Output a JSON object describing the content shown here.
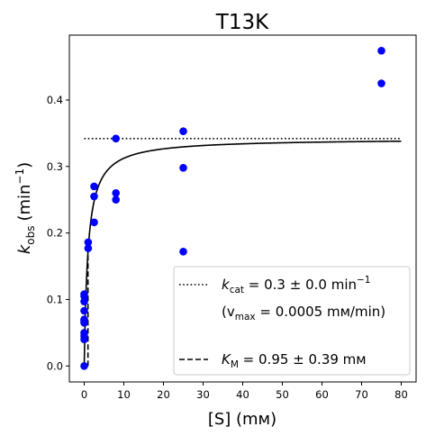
{
  "chart_data": {
    "type": "scatter",
    "title": "T13K",
    "xlabel": "[S] (mм)",
    "ylabel_main": "k",
    "ylabel_sub": "obs",
    "ylabel_unit": "(min",
    "ylabel_exp": "−1",
    "ylabel_close": ")",
    "xlim": [
      -3.75,
      83.75
    ],
    "ylim": [
      -0.024,
      0.4975
    ],
    "xticks": [
      0,
      10,
      20,
      30,
      40,
      50,
      60,
      70,
      80
    ],
    "yticks": [
      0.0,
      0.1,
      0.2,
      0.3,
      0.4
    ],
    "ytick_labels": [
      "0.0",
      "0.1",
      "0.2",
      "0.3",
      "0.4"
    ],
    "grid": false,
    "legend_position": "lower-right",
    "points": {
      "color": "#0000ff",
      "x": [
        0,
        0,
        0,
        0,
        0,
        0,
        0,
        0,
        0,
        0,
        0,
        1,
        1,
        2.5,
        2.5,
        2.5,
        8,
        8,
        8,
        25,
        25,
        25,
        75,
        75
      ],
      "y": [
        0.0,
        0.04,
        0.045,
        0.05,
        0.065,
        0.068,
        0.07,
        0.083,
        0.097,
        0.105,
        0.108,
        0.177,
        0.186,
        0.216,
        0.255,
        0.27,
        0.25,
        0.26,
        0.342,
        0.172,
        0.298,
        0.353,
        0.425,
        0.474
      ]
    },
    "fit": {
      "kcat": 0.342,
      "km": 0.95,
      "x_range": [
        0,
        80
      ],
      "color": "#000000"
    },
    "kcat_line": {
      "y": 0.342,
      "x_range": [
        0,
        80
      ]
    },
    "km_line": {
      "x": 0.95
    },
    "legend": {
      "kcat_symbol": "k",
      "kcat_sub": "cat",
      "kcat_value": " = 0.3 ± 0.0 min",
      "kcat_exp": "−1",
      "vmax_open": "(v",
      "vmax_sub": "max",
      "vmax_value": " = 0.0005 mм/min)",
      "km_symbol": "K",
      "km_sub": "M",
      "km_value": " = 0.95 ± 0.39 mм"
    }
  }
}
